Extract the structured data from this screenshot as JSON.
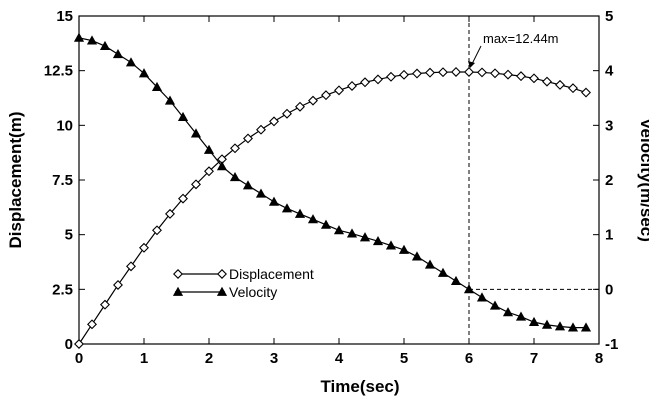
{
  "chart_data": {
    "type": "line",
    "xlabel": "Time(sec)",
    "ylabel": "Displacement(m)",
    "y2label": "Velocity(m/sec)",
    "xlim": [
      0,
      8
    ],
    "ylim": [
      0,
      15
    ],
    "y2lim": [
      -1,
      5
    ],
    "xticks": [
      "0",
      "1",
      "2",
      "3",
      "4",
      "5",
      "6",
      "7",
      "8"
    ],
    "yticks": [
      "0",
      "2.5",
      "5",
      "7.5",
      "10",
      "12.5",
      "15"
    ],
    "y2ticks": [
      "-1",
      "0",
      "1",
      "2",
      "3",
      "4",
      "5"
    ],
    "grid": false,
    "legend_position": "lower-left",
    "series": [
      {
        "name": "Displacement",
        "axis": "left",
        "marker": "diamond-open",
        "x": [
          0,
          0.2,
          0.4,
          0.6,
          0.8,
          1.0,
          1.2,
          1.4,
          1.6,
          1.8,
          2.0,
          2.2,
          2.4,
          2.6,
          2.8,
          3.0,
          3.2,
          3.4,
          3.6,
          3.8,
          4.0,
          4.2,
          4.4,
          4.6,
          4.8,
          5.0,
          5.2,
          5.4,
          5.6,
          5.8,
          6.0,
          6.2,
          6.4,
          6.6,
          6.8,
          7.0,
          7.2,
          7.4,
          7.6,
          7.8
        ],
        "y": [
          0,
          0.9,
          1.8,
          2.7,
          3.55,
          4.4,
          5.2,
          5.95,
          6.65,
          7.3,
          7.9,
          8.45,
          8.95,
          9.4,
          9.8,
          10.18,
          10.53,
          10.85,
          11.13,
          11.38,
          11.6,
          11.8,
          11.97,
          12.1,
          12.22,
          12.31,
          12.37,
          12.41,
          12.43,
          12.44,
          12.44,
          12.42,
          12.38,
          12.32,
          12.25,
          12.15,
          12.0,
          11.85,
          11.7,
          11.5
        ]
      },
      {
        "name": "Velocity",
        "axis": "right",
        "marker": "triangle-filled",
        "x": [
          0,
          0.2,
          0.4,
          0.6,
          0.8,
          1.0,
          1.2,
          1.4,
          1.6,
          1.8,
          2.0,
          2.2,
          2.4,
          2.6,
          2.8,
          3.0,
          3.2,
          3.4,
          3.6,
          3.8,
          4.0,
          4.2,
          4.4,
          4.6,
          4.8,
          5.0,
          5.2,
          5.4,
          5.6,
          5.8,
          6.0,
          6.2,
          6.4,
          6.6,
          6.8,
          7.0,
          7.2,
          7.4,
          7.6,
          7.8
        ],
        "y": [
          4.6,
          4.55,
          4.45,
          4.3,
          4.15,
          3.95,
          3.7,
          3.45,
          3.15,
          2.85,
          2.55,
          2.25,
          2.05,
          1.9,
          1.75,
          1.6,
          1.48,
          1.38,
          1.28,
          1.18,
          1.08,
          1.02,
          0.95,
          0.88,
          0.8,
          0.72,
          0.6,
          0.45,
          0.3,
          0.15,
          0.0,
          -0.15,
          -0.3,
          -0.42,
          -0.5,
          -0.6,
          -0.65,
          -0.68,
          -0.7,
          -0.7
        ]
      }
    ],
    "annotations": [
      {
        "text": "max=12.44m",
        "x": 6.0,
        "y": 12.44,
        "axis": "left"
      }
    ],
    "reference_lines": [
      {
        "orientation": "vertical",
        "x": 6.0,
        "style": "dashed"
      },
      {
        "orientation": "horizontal",
        "y": 0,
        "axis": "right",
        "x_from": 6.0,
        "x_to": 8.0,
        "style": "dashed"
      }
    ]
  }
}
